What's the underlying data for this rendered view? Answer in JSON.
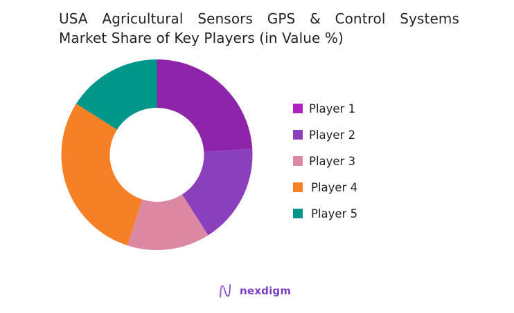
{
  "title": {
    "line1_words": [
      "USA",
      "Agricultural",
      "Sensors",
      "GPS",
      "&",
      "Control",
      "Systems"
    ],
    "line2": "Market Share of Key Players (in Value %)"
  },
  "chart_data": {
    "type": "pie",
    "variant": "donut",
    "title": "USA Agricultural Sensors GPS & Control Systems Market Share of Key Players (in Value %)",
    "categories": [
      "Player 1",
      "Player 2",
      "Player 3",
      "Player 4",
      "Player 5"
    ],
    "values": [
      24,
      17,
      14,
      29,
      16
    ],
    "colors": [
      "#8e24aa",
      "#8a3fbc",
      "#dd88a2",
      "#f58026",
      "#00968a"
    ],
    "legend_colors": [
      "#b01fbf",
      "#8a3fbc",
      "#dd88a2",
      "#f58026",
      "#00968a"
    ],
    "start_angle_deg": 0,
    "direction": "clockwise",
    "legend_position": "right",
    "units": "%"
  },
  "logo": {
    "text": "nexdigm",
    "color": "#7b3fc4"
  }
}
